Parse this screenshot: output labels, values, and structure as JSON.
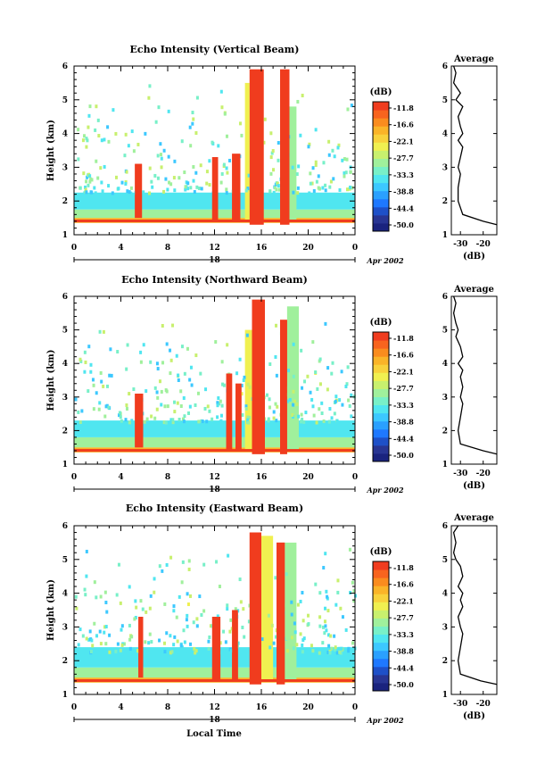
{
  "figure": {
    "local_time_label": "Local Time",
    "day_label": "18",
    "month_label": "Apr 2002",
    "avg_xlabel": "(dB)",
    "avg_title": "Average",
    "colorbar_unit": "(dB)",
    "colorbar_ticks": [
      "-11.8",
      "-16.6",
      "-22.1",
      "-27.7",
      "-33.3",
      "-38.8",
      "-44.4",
      "-50.0"
    ],
    "colorscale": [
      "#1a237e",
      "#283593",
      "#1e50c8",
      "#1e78ff",
      "#2aa0ff",
      "#3cc8ff",
      "#50e6f0",
      "#78f0c8",
      "#a0f09c",
      "#c8f06e",
      "#f0f050",
      "#f8d23c",
      "#fab428",
      "#fa8c1e",
      "#f8641e",
      "#f03c1e"
    ]
  },
  "chart_data": [
    {
      "type": "heatmap",
      "title": "Echo Intensity (Vertical Beam)",
      "xlabel": "Local Time",
      "ylabel": "Height (km)",
      "xlim": [
        0,
        24
      ],
      "ylim": [
        1,
        6
      ],
      "x_ticks": [
        "0",
        "4",
        "8",
        "12",
        "16",
        "20",
        "0"
      ],
      "y_ticks": [
        "1",
        "2",
        "3",
        "4",
        "5",
        "6"
      ],
      "colorbar": {
        "unit": "(dB)",
        "range": [
          -50.0,
          -11.8
        ]
      },
      "cells": [
        {
          "t0": 0,
          "t1": 24,
          "h0": 1.35,
          "h1": 1.5,
          "db": -20
        },
        {
          "t0": 0,
          "t1": 24,
          "h0": 1.5,
          "h1": 1.75,
          "db": -30
        },
        {
          "t0": 0,
          "t1": 24,
          "h0": 1.75,
          "h1": 2.25,
          "db": -35
        },
        {
          "t0": 5.2,
          "t1": 5.8,
          "h0": 1.5,
          "h1": 3.1,
          "db": -13
        },
        {
          "t0": 11.8,
          "t1": 12.3,
          "h0": 1.4,
          "h1": 3.3,
          "db": -13
        },
        {
          "t0": 13.5,
          "t1": 14.2,
          "h0": 1.4,
          "h1": 3.4,
          "db": -13
        },
        {
          "t0": 15.0,
          "t1": 16.2,
          "h0": 1.3,
          "h1": 5.9,
          "db": -12
        },
        {
          "t0": 17.6,
          "t1": 18.4,
          "h0": 1.3,
          "h1": 5.9,
          "db": -12
        },
        {
          "t0": 14.6,
          "t1": 15.0,
          "h0": 1.4,
          "h1": 5.5,
          "db": -25
        },
        {
          "t0": 18.4,
          "t1": 19.0,
          "h0": 1.4,
          "h1": 4.8,
          "db": -30
        }
      ],
      "average_profile": {
        "title": "Average",
        "xlabel": "(dB)",
        "x_ticks": [
          "-30",
          "-20"
        ],
        "xlim": [
          -34,
          -14
        ],
        "y_ticks": [
          "1",
          "2",
          "3",
          "4",
          "5",
          "6"
        ],
        "height": [
          1.3,
          1.4,
          1.6,
          2.0,
          2.4,
          2.8,
          3.0,
          3.3,
          3.6,
          3.8,
          4.0,
          4.2,
          4.5,
          4.8,
          5.0,
          5.2,
          5.5,
          5.8,
          6.0
        ],
        "db": [
          -14,
          -20,
          -29,
          -31,
          -31,
          -30,
          -31,
          -30,
          -29,
          -31,
          -29,
          -30,
          -31,
          -29,
          -32,
          -30,
          -33,
          -32,
          -33
        ]
      }
    },
    {
      "type": "heatmap",
      "title": "Echo Intensity (Northward Beam)",
      "xlabel": "Local Time",
      "ylabel": "Height (km)",
      "xlim": [
        0,
        24
      ],
      "ylim": [
        1,
        6
      ],
      "x_ticks": [
        "0",
        "4",
        "8",
        "12",
        "16",
        "20",
        "0"
      ],
      "y_ticks": [
        "1",
        "2",
        "3",
        "4",
        "5",
        "6"
      ],
      "colorbar": {
        "unit": "(dB)",
        "range": [
          -50.0,
          -11.8
        ]
      },
      "cells": [
        {
          "t0": 0,
          "t1": 24,
          "h0": 1.35,
          "h1": 1.5,
          "db": -20
        },
        {
          "t0": 0,
          "t1": 24,
          "h0": 1.5,
          "h1": 1.8,
          "db": -30
        },
        {
          "t0": 0,
          "t1": 24,
          "h0": 1.8,
          "h1": 2.3,
          "db": -35
        },
        {
          "t0": 5.2,
          "t1": 5.9,
          "h0": 1.5,
          "h1": 3.1,
          "db": -13
        },
        {
          "t0": 13.0,
          "t1": 13.5,
          "h0": 1.4,
          "h1": 3.7,
          "db": -13
        },
        {
          "t0": 13.8,
          "t1": 14.3,
          "h0": 1.4,
          "h1": 3.4,
          "db": -13
        },
        {
          "t0": 15.2,
          "t1": 16.3,
          "h0": 1.3,
          "h1": 5.9,
          "db": -12
        },
        {
          "t0": 17.6,
          "t1": 18.2,
          "h0": 1.3,
          "h1": 5.3,
          "db": -12
        },
        {
          "t0": 14.6,
          "t1": 15.2,
          "h0": 1.4,
          "h1": 5.0,
          "db": -25
        },
        {
          "t0": 18.2,
          "t1": 19.2,
          "h0": 1.4,
          "h1": 5.7,
          "db": -30
        }
      ],
      "average_profile": {
        "title": "Average",
        "xlabel": "(dB)",
        "x_ticks": [
          "-30",
          "-20"
        ],
        "xlim": [
          -34,
          -14
        ],
        "y_ticks": [
          "1",
          "2",
          "3",
          "4",
          "5",
          "6"
        ],
        "height": [
          1.3,
          1.4,
          1.6,
          2.0,
          2.4,
          2.8,
          3.0,
          3.3,
          3.6,
          3.8,
          4.0,
          4.2,
          4.5,
          4.8,
          5.0,
          5.2,
          5.5,
          5.8,
          6.0
        ],
        "db": [
          -14,
          -20,
          -30,
          -31,
          -30,
          -29,
          -30,
          -29,
          -30,
          -29,
          -31,
          -29,
          -30,
          -32,
          -31,
          -32,
          -33,
          -32,
          -33
        ]
      }
    },
    {
      "type": "heatmap",
      "title": "Echo Intensity (Eastward Beam)",
      "xlabel": "Local Time",
      "ylabel": "Height (km)",
      "xlim": [
        0,
        24
      ],
      "ylim": [
        1,
        6
      ],
      "x_ticks": [
        "0",
        "4",
        "8",
        "12",
        "16",
        "20",
        "0"
      ],
      "y_ticks": [
        "1",
        "2",
        "3",
        "4",
        "5",
        "6"
      ],
      "colorbar": {
        "unit": "(dB)",
        "range": [
          -50.0,
          -11.8
        ]
      },
      "cells": [
        {
          "t0": 0,
          "t1": 24,
          "h0": 1.35,
          "h1": 1.5,
          "db": -20
        },
        {
          "t0": 0,
          "t1": 24,
          "h0": 1.5,
          "h1": 1.8,
          "db": -30
        },
        {
          "t0": 0,
          "t1": 24,
          "h0": 1.8,
          "h1": 2.4,
          "db": -35
        },
        {
          "t0": 5.5,
          "t1": 5.9,
          "h0": 1.5,
          "h1": 3.3,
          "db": -13
        },
        {
          "t0": 11.8,
          "t1": 12.5,
          "h0": 1.4,
          "h1": 3.3,
          "db": -13
        },
        {
          "t0": 13.5,
          "t1": 14.0,
          "h0": 1.4,
          "h1": 3.5,
          "db": -13
        },
        {
          "t0": 15.0,
          "t1": 16.0,
          "h0": 1.3,
          "h1": 5.8,
          "db": -12
        },
        {
          "t0": 17.3,
          "t1": 18.0,
          "h0": 1.3,
          "h1": 5.5,
          "db": -12
        },
        {
          "t0": 16.0,
          "t1": 17.0,
          "h0": 1.4,
          "h1": 5.7,
          "db": -25
        },
        {
          "t0": 18.0,
          "t1": 19.0,
          "h0": 1.4,
          "h1": 5.5,
          "db": -30
        }
      ],
      "average_profile": {
        "title": "Average",
        "xlabel": "(dB)",
        "x_ticks": [
          "-30",
          "-20"
        ],
        "xlim": [
          -34,
          -14
        ],
        "y_ticks": [
          "1",
          "2",
          "3",
          "4",
          "5",
          "6"
        ],
        "height": [
          1.3,
          1.4,
          1.6,
          2.0,
          2.4,
          2.8,
          3.0,
          3.3,
          3.6,
          3.8,
          4.0,
          4.2,
          4.5,
          4.8,
          5.0,
          5.2,
          5.5,
          5.8,
          6.0
        ],
        "db": [
          -14,
          -21,
          -30,
          -31,
          -30,
          -29,
          -30,
          -31,
          -29,
          -30,
          -29,
          -31,
          -29,
          -30,
          -32,
          -33,
          -32,
          -33,
          -31
        ]
      }
    }
  ]
}
